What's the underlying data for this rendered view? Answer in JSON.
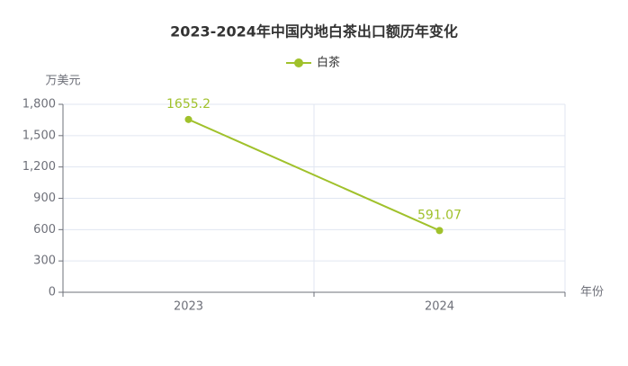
{
  "chart_data": {
    "type": "line",
    "title": "2023-2024年中国内地白茶出口额历年变化",
    "y_axis_label": "万美元",
    "x_axis_label": "年份",
    "categories": [
      "2023",
      "2024"
    ],
    "series": [
      {
        "name": "白茶",
        "color": "#a0c12b",
        "values": [
          1655.2,
          591.07
        ]
      }
    ],
    "ylim": [
      0,
      1800
    ],
    "yticks": [
      0,
      300,
      600,
      900,
      {
        "value": 1200,
        "label": "1,200"
      },
      {
        "value": 1500,
        "label": "1,500"
      },
      {
        "value": 1800,
        "label": "1,800"
      }
    ],
    "grid": true,
    "legend": "top"
  }
}
